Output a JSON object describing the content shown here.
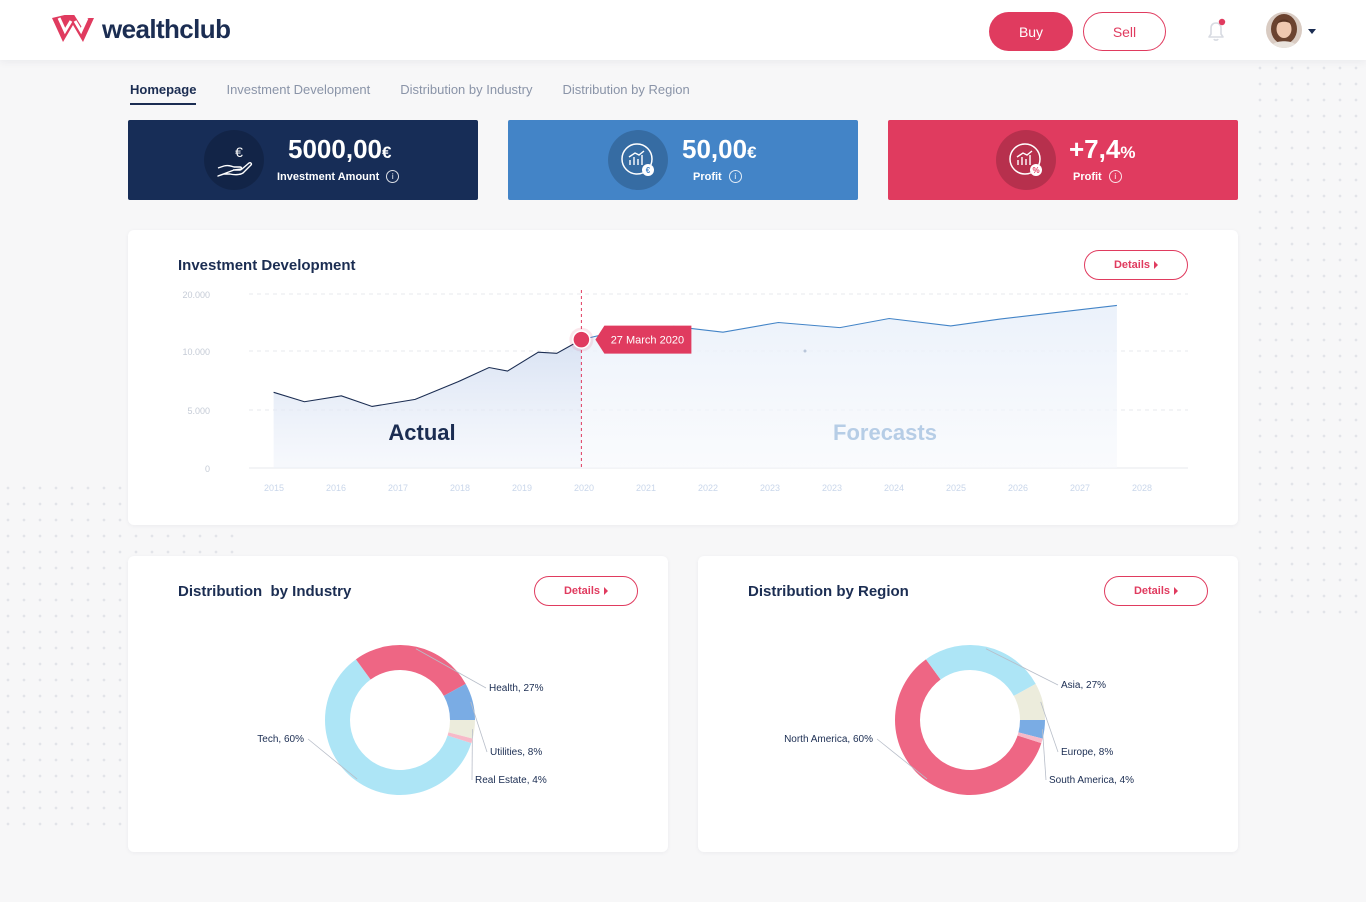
{
  "header": {
    "brand": "wealthclub",
    "buy_label": "Buy",
    "sell_label": "Sell",
    "accent_color": "#e03b5f",
    "notification_dot": true
  },
  "tabs": [
    {
      "label": "Homepage",
      "active": true
    },
    {
      "label": "Investment Development",
      "active": false
    },
    {
      "label": "Distribution by Industry",
      "active": false
    },
    {
      "label": "Distribution by Region",
      "active": false
    }
  ],
  "stats": [
    {
      "value": "5000,00",
      "unit": "€",
      "label": "Investment Amount",
      "icon": "hand-euro-icon",
      "color": "#172d57"
    },
    {
      "value": "50,00",
      "unit": "€",
      "label": "Profit",
      "icon": "chart-euro-icon",
      "color": "#4384c7"
    },
    {
      "value": "+7,4",
      "unit": "%",
      "label": "Profit",
      "icon": "chart-percent-icon",
      "color": "#e03b5f"
    }
  ],
  "investment_card": {
    "title": "Investment Development",
    "details_label": "Details",
    "actual_label": "Actual",
    "forecast_label": "Forecasts",
    "marker_label": "27 March 2020"
  },
  "industry_card": {
    "title": "Distribution  by Industry",
    "details_label": "Details"
  },
  "region_card": {
    "title": "Distribution by Region",
    "details_label": "Details"
  },
  "chart_data": [
    {
      "type": "area",
      "title": "Investment Development",
      "y_ticks": [
        "20.000",
        "10.000",
        "5.000",
        "0"
      ],
      "x_ticks": [
        "2015",
        "2016",
        "2017",
        "2018",
        "2019",
        "2020",
        "2021",
        "2022",
        "2023",
        "2023",
        "2024",
        "2025",
        "2026",
        "2027",
        "2028"
      ],
      "grid": true,
      "split_at": "27 March 2020",
      "series": [
        {
          "name": "Actual",
          "x": [
            2015.0,
            2015.5,
            2016.1,
            2016.6,
            2017.3,
            2018.0,
            2018.5,
            2018.8,
            2019.3,
            2019.6,
            2020.0
          ],
          "y": [
            6500,
            5700,
            6200,
            5300,
            5900,
            7400,
            8600,
            8300,
            9900,
            9800,
            12000
          ]
        },
        {
          "name": "Forecasts",
          "x": [
            2020.0,
            2020.4,
            2021.5,
            2022.3,
            2023.2,
            2024.2,
            2025.0,
            2026.0,
            2026.8,
            2028.7
          ],
          "y": [
            12000,
            13000,
            14300,
            13300,
            15000,
            14100,
            15700,
            14400,
            15600,
            18000
          ]
        }
      ]
    },
    {
      "type": "pie",
      "title": "Distribution  by Industry",
      "slices": [
        {
          "label": "Tech, 60%",
          "value": 60,
          "color": "#ade5f6"
        },
        {
          "label": "Health, 27%",
          "value": 27,
          "color": "#ee6684"
        },
        {
          "label": "Utilities, 8%",
          "value": 8,
          "color": "#7aace4"
        },
        {
          "label": "Real Estate, 4%",
          "value": 4,
          "color": "#ececdc"
        },
        {
          "label": "",
          "value": 1,
          "color": "#f7b9c8"
        }
      ]
    },
    {
      "type": "pie",
      "title": "Distribution by Region",
      "slices": [
        {
          "label": "North America, 60%",
          "value": 60,
          "color": "#ee6684"
        },
        {
          "label": "Asia, 27%",
          "value": 27,
          "color": "#ade5f6"
        },
        {
          "label": "Europe, 8%",
          "value": 8,
          "color": "#ececdc"
        },
        {
          "label": "South America, 4%",
          "value": 4,
          "color": "#7aace4"
        },
        {
          "label": "",
          "value": 1,
          "color": "#f7b9c8"
        }
      ]
    }
  ]
}
